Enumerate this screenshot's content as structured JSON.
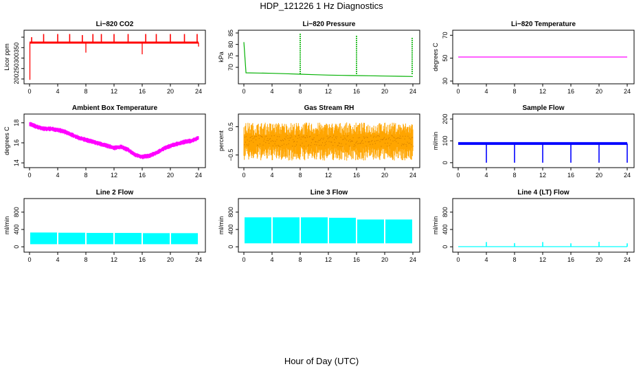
{
  "figure": {
    "title": "HDP_121226  1 Hz Diagnostics",
    "xlabel": "Hour of Day (UTC)"
  },
  "chart_data": [
    {
      "type": "line",
      "title": "Li−820 CO2",
      "ylabel": "Licor ppm",
      "color": "#ff0000",
      "x": [
        0,
        2,
        4,
        6,
        8,
        10,
        12,
        14,
        16,
        18,
        20,
        22,
        24
      ],
      "xticks": [
        0,
        4,
        8,
        12,
        16,
        20,
        24
      ],
      "ylim": [
        190,
        420
      ],
      "yticks": [
        200,
        250,
        300,
        350,
        400
      ],
      "ytick_labels": [
        "200",
        "250",
        "300",
        "350",
        ""
      ],
      "baseline": 374,
      "spikes_up": [
        [
          0.3,
          400
        ],
        [
          2,
          415
        ],
        [
          4,
          415
        ],
        [
          5.7,
          415
        ],
        [
          7.5,
          410
        ],
        [
          9,
          415
        ],
        [
          10.2,
          415
        ],
        [
          12,
          415
        ],
        [
          14,
          415
        ],
        [
          16.5,
          415
        ],
        [
          18,
          415
        ],
        [
          20,
          415
        ],
        [
          22,
          415
        ],
        [
          23.8,
          415
        ]
      ],
      "spikes_down": [
        [
          0.05,
          196
        ],
        [
          8,
          326
        ],
        [
          16,
          318
        ],
        [
          24,
          355
        ]
      ]
    },
    {
      "type": "line",
      "title": "Li−820 Pressure",
      "ylabel": "kPa",
      "color": "#00b000",
      "x": [
        0,
        0.3,
        2,
        4,
        6,
        8,
        10,
        12,
        14,
        16,
        18,
        20,
        22,
        24
      ],
      "y": [
        81,
        67.6,
        67.5,
        67.4,
        67.2,
        67.0,
        66.8,
        66.6,
        66.5,
        66.4,
        66.3,
        66.2,
        66.1,
        66.0
      ],
      "xticks": [
        0,
        4,
        8,
        12,
        16,
        20,
        24
      ],
      "ylim": [
        64,
        85
      ],
      "yticks": [
        70,
        75,
        80,
        85
      ],
      "ytick_labels": [
        "70",
        "75",
        "80",
        "85"
      ],
      "spikes": [
        [
          8,
          85
        ],
        [
          16,
          84
        ],
        [
          23.9,
          83
        ]
      ]
    },
    {
      "type": "line",
      "title": "Li−820 Temperature",
      "ylabel": "degrees C",
      "color": "#ff00ff",
      "x": [
        0,
        24
      ],
      "y": [
        51,
        51
      ],
      "xticks": [
        0,
        4,
        8,
        12,
        16,
        20,
        24
      ],
      "ylim": [
        30,
        72
      ],
      "yticks": [
        30,
        50,
        70
      ],
      "ytick_labels": [
        "30",
        "50",
        "70"
      ]
    },
    {
      "type": "line",
      "title": "Ambient Box Temperature",
      "ylabel": "degrees C",
      "color": "#ff00ff",
      "x": [
        0,
        1,
        2,
        3,
        4,
        5,
        6,
        7,
        8,
        9,
        10,
        11,
        12,
        13,
        14,
        15,
        16,
        17,
        18,
        19,
        20,
        21,
        22,
        23,
        24
      ],
      "y": [
        17.9,
        17.6,
        17.4,
        17.4,
        17.3,
        17.1,
        16.8,
        16.5,
        16.3,
        16.1,
        15.9,
        15.7,
        15.5,
        15.6,
        15.3,
        14.8,
        14.6,
        14.7,
        15.0,
        15.4,
        15.7,
        15.9,
        16.1,
        16.2,
        16.5
      ],
      "band": 0.5,
      "xticks": [
        0,
        4,
        8,
        12,
        16,
        20,
        24
      ],
      "ylim": [
        13.8,
        18.6
      ],
      "yticks": [
        14,
        16,
        18
      ],
      "ytick_labels": [
        "14",
        "16",
        "18"
      ]
    },
    {
      "type": "area",
      "title": "Gas Stream RH",
      "ylabel": "percent",
      "color": "#ffa500",
      "x": [
        0,
        24
      ],
      "y_low": [
        -0.6,
        -0.6
      ],
      "y_high": [
        0.6,
        0.6
      ],
      "xticks": [
        0,
        4,
        8,
        12,
        16,
        20,
        24
      ],
      "ylim": [
        -0.85,
        0.85
      ],
      "yticks": [
        -0.5,
        0.5
      ],
      "ytick_labels": [
        "−0.5",
        "0.5"
      ]
    },
    {
      "type": "line",
      "title": "Sample Flow",
      "ylabel": "ml/min",
      "color": "#0000ff",
      "x": [
        0,
        24
      ],
      "y": [
        88,
        88
      ],
      "xticks": [
        0,
        4,
        8,
        12,
        16,
        20,
        24
      ],
      "ylim": [
        -10,
        210
      ],
      "yticks": [
        0,
        100,
        200
      ],
      "ytick_labels": [
        "0",
        "100",
        "200"
      ],
      "dips": [
        [
          4,
          0
        ],
        [
          8,
          0
        ],
        [
          12,
          0
        ],
        [
          16,
          0
        ],
        [
          20,
          0
        ],
        [
          24,
          0
        ]
      ]
    },
    {
      "type": "area",
      "title": "Line 2 Flow",
      "ylabel": "ml/min",
      "color": "#00ffff",
      "x": [
        0,
        4,
        8,
        12,
        16,
        20,
        24
      ],
      "y_low": [
        60,
        60,
        60,
        60,
        60,
        60,
        60
      ],
      "y_high": [
        330,
        325,
        320,
        320,
        315,
        315,
        315
      ],
      "xticks": [
        0,
        4,
        8,
        12,
        16,
        20,
        24
      ],
      "ylim": [
        -60,
        1050
      ],
      "yticks": [
        0,
        400,
        800
      ],
      "ytick_labels": [
        "0",
        "400",
        "800"
      ]
    },
    {
      "type": "area",
      "title": "Line 3 Flow",
      "ylabel": "ml/min",
      "color": "#00ffff",
      "x": [
        0,
        4,
        8,
        12,
        16,
        20,
        24
      ],
      "y_low": [
        80,
        80,
        80,
        80,
        80,
        80,
        80
      ],
      "y_high": [
        680,
        680,
        680,
        670,
        630,
        630,
        625
      ],
      "xticks": [
        0,
        4,
        8,
        12,
        16,
        20,
        24
      ],
      "ylim": [
        -60,
        1050
      ],
      "yticks": [
        0,
        400,
        800
      ],
      "ytick_labels": [
        "0",
        "400",
        "800"
      ]
    },
    {
      "type": "line",
      "title": "Line 4 (LT) Flow",
      "ylabel": "ml/min",
      "color": "#00ffff",
      "x": [
        0,
        24
      ],
      "y": [
        3,
        3
      ],
      "xticks": [
        0,
        4,
        8,
        12,
        16,
        20,
        24
      ],
      "ylim": [
        -60,
        1050
      ],
      "yticks": [
        0,
        400,
        800
      ],
      "ytick_labels": [
        "0",
        "400",
        "800"
      ],
      "spikes": [
        [
          4,
          110
        ],
        [
          8,
          85
        ],
        [
          12,
          110
        ],
        [
          16,
          80
        ],
        [
          20,
          115
        ],
        [
          24,
          80
        ]
      ]
    }
  ]
}
